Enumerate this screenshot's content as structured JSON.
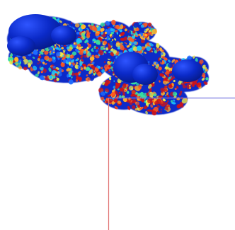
{
  "scene": {
    "background": "#ffffff",
    "surface": {
      "base_color": "#0b2ac8",
      "shadow_color": "#061a8a",
      "highlight_color": "#2f55ff",
      "colormap": [
        "#0b2ac8",
        "#1e6bff",
        "#19c3ff",
        "#38e0a0",
        "#e8e84a",
        "#ffb22a",
        "#ff5a1f",
        "#d21414"
      ]
    },
    "axes": {
      "vertical_color": "#e07070",
      "horizontal_color": "#7a7ae0"
    }
  }
}
